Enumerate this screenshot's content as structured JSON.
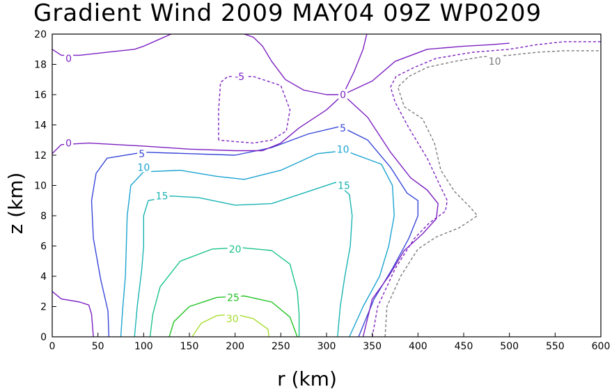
{
  "chart_data": {
    "type": "contour",
    "title": "Gradient Wind 2009 MAY04 09Z   WP0209",
    "xlabel": "r (km)",
    "ylabel": "z (km)",
    "xlim": [
      0,
      600
    ],
    "ylim": [
      0,
      20
    ],
    "x_ticks": [
      "0",
      "50",
      "100",
      "150",
      "200",
      "250",
      "300",
      "350",
      "400",
      "450",
      "500",
      "550",
      "600"
    ],
    "y_ticks": [
      "0",
      "2",
      "4",
      "6",
      "8",
      "10",
      "12",
      "14",
      "16",
      "18",
      "20"
    ],
    "grid": false,
    "legend": "none",
    "contours": [
      {
        "level": "30",
        "color": "#a6dc2c",
        "dashed": false,
        "label_at": [
          197,
          1.2
        ],
        "paths": [
          [
            [
              153,
              0
            ],
            [
              163,
              0.9
            ],
            [
              180,
              1.4
            ],
            [
              200,
              1.5
            ],
            [
              220,
              1.2
            ],
            [
              236,
              0.5
            ],
            [
              237,
              0
            ]
          ]
        ]
      },
      {
        "level": "25",
        "color": "#1fc21f",
        "dashed": false,
        "label_at": [
          198,
          2.6
        ],
        "paths": [
          [
            [
              128,
              0
            ],
            [
              133,
              1.0
            ],
            [
              150,
              2.0
            ],
            [
              180,
              2.6
            ],
            [
              210,
              2.7
            ],
            [
              240,
              2.3
            ],
            [
              260,
              1.3
            ],
            [
              268,
              0
            ]
          ]
        ]
      },
      {
        "level": "20",
        "color": "#19c28c",
        "dashed": false,
        "label_at": [
          200,
          5.8
        ],
        "paths": [
          [
            [
              107,
              0
            ],
            [
              110,
              1.5
            ],
            [
              118,
              3.3
            ],
            [
              140,
              5.0
            ],
            [
              175,
              5.8
            ],
            [
              205,
              5.9
            ],
            [
              240,
              5.7
            ],
            [
              260,
              4.8
            ],
            [
              268,
              3.0
            ],
            [
              270,
              1.5
            ],
            [
              270,
              0
            ]
          ]
        ]
      },
      {
        "level": "15",
        "color": "#19b3b3",
        "dashed": false,
        "label_at": [
          120,
          9.3
        ],
        "label2_at": [
          319,
          10.0
        ],
        "paths": [
          [
            [
              90,
              0
            ],
            [
              93,
              2.0
            ],
            [
              98,
              4.5
            ],
            [
              100,
              6.0
            ],
            [
              100,
              8.0
            ],
            [
              105,
              9.0
            ],
            [
              130,
              9.3
            ],
            [
              160,
              9.2
            ],
            [
              200,
              8.7
            ],
            [
              240,
              8.8
            ],
            [
              280,
              9.6
            ],
            [
              310,
              10.2
            ],
            [
              325,
              9.4
            ],
            [
              328,
              8.0
            ],
            [
              326,
              6.0
            ],
            [
              320,
              4.0
            ],
            [
              315,
              2.0
            ],
            [
              312,
              0
            ]
          ]
        ]
      },
      {
        "level": "10",
        "color": "#1aa3d1",
        "dashed": false,
        "label_at": [
          100,
          11.2
        ],
        "label2_at": [
          318,
          12.4
        ],
        "paths": [
          [
            [
              75,
              0
            ],
            [
              77,
              1.8
            ],
            [
              80,
              4.0
            ],
            [
              81,
              6.0
            ],
            [
              82,
              8.0
            ],
            [
              86,
              10.0
            ],
            [
              100,
              10.9
            ],
            [
              140,
              11.0
            ],
            [
              180,
              10.6
            ],
            [
              210,
              10.4
            ],
            [
              250,
              11.0
            ],
            [
              290,
              12.1
            ],
            [
              320,
              12.3
            ],
            [
              360,
              11.4
            ],
            [
              372,
              10.0
            ],
            [
              374,
              8.0
            ],
            [
              368,
              6.0
            ],
            [
              358,
              4.0
            ],
            [
              340,
              2.0
            ],
            [
              325,
              0
            ]
          ]
        ]
      },
      {
        "level": "5",
        "color": "#3545d8",
        "dashed": false,
        "label_at": [
          98,
          12.1
        ],
        "label2_at": [
          318,
          13.8
        ],
        "paths": [
          [
            [
              62,
              0
            ],
            [
              61,
              1.7
            ],
            [
              53,
              3.8
            ],
            [
              45,
              6.5
            ],
            [
              43,
              9.0
            ],
            [
              48,
              10.8
            ],
            [
              60,
              11.8
            ],
            [
              100,
              12.2
            ],
            [
              150,
              12.1
            ],
            [
              200,
              12.0
            ],
            [
              240,
              12.5
            ],
            [
              280,
              13.4
            ],
            [
              315,
              13.9
            ],
            [
              345,
              13.0
            ],
            [
              370,
              11.2
            ],
            [
              388,
              9.5
            ],
            [
              400,
              9.0
            ],
            [
              400,
              8.0
            ],
            [
              390,
              6.5
            ],
            [
              372,
              4.5
            ],
            [
              352,
              2.5
            ],
            [
              335,
              0
            ]
          ]
        ]
      },
      {
        "level": "0",
        "color": "#7b1fc1",
        "dashed": false,
        "label_at": [
          18,
          18.4
        ],
        "label2_at": [
          18,
          12.8
        ],
        "label3_at": [
          318,
          16.0
        ],
        "paths": [
          [
            [
              0,
              19.0
            ],
            [
              10,
              18.6
            ],
            [
              30,
              18.6
            ],
            [
              60,
              18.8
            ],
            [
              90,
              19.0
            ],
            [
              100,
              19.2
            ],
            [
              115,
              19.6
            ],
            [
              130,
              20.0
            ]
          ],
          [
            [
              0,
              12.1
            ],
            [
              10,
              12.7
            ],
            [
              40,
              12.8
            ],
            [
              100,
              12.6
            ],
            [
              150,
              12.4
            ],
            [
              200,
              12.3
            ],
            [
              230,
              12.3
            ],
            [
              250,
              12.8
            ],
            [
              270,
              13.8
            ],
            [
              300,
              15.0
            ],
            [
              318,
              16.0
            ],
            [
              345,
              14.5
            ],
            [
              370,
              12.2
            ],
            [
              392,
              10.5
            ],
            [
              410,
              9.7
            ],
            [
              422,
              8.8
            ],
            [
              420,
              7.8
            ],
            [
              405,
              6.8
            ],
            [
              385,
              5.7
            ],
            [
              368,
              4.0
            ],
            [
              350,
              2.5
            ],
            [
              340,
              0
            ]
          ],
          [
            [
              0,
              3.0
            ],
            [
              10,
              2.5
            ],
            [
              30,
              2.3
            ],
            [
              40,
              2.1
            ],
            [
              43,
              1.5
            ],
            [
              45,
              0
            ]
          ],
          [
            [
              210,
              20.0
            ],
            [
              220,
              19.8
            ],
            [
              230,
              19.2
            ],
            [
              240,
              18.2
            ],
            [
              255,
              17.0
            ],
            [
              275,
              16.3
            ],
            [
              300,
              16.0
            ],
            [
              318,
              16.0
            ],
            [
              330,
              17.5
            ],
            [
              340,
              19.0
            ],
            [
              344,
              20.0
            ]
          ],
          [
            [
              318,
              16.0
            ],
            [
              350,
              16.9
            ],
            [
              375,
              18.2
            ],
            [
              410,
              19.0
            ],
            [
              450,
              19.2
            ],
            [
              480,
              19.3
            ],
            [
              500,
              19.4
            ]
          ]
        ]
      },
      {
        "level": "-5",
        "color": "#7b1fc1",
        "dashed": true,
        "label_at": [
          205,
          17.2
        ],
        "label2_at": [
          484,
          18.3
        ],
        "paths": [
          [
            [
              182,
              13.0
            ],
            [
              182,
              15.0
            ],
            [
              184,
              16.8
            ],
            [
              192,
              17.2
            ],
            [
              220,
              17.2
            ],
            [
              250,
              16.6
            ],
            [
              260,
              15.0
            ],
            [
              256,
              13.6
            ],
            [
              240,
              13.0
            ],
            [
              220,
              12.8
            ],
            [
              200,
              12.9
            ],
            [
              182,
              13.0
            ]
          ],
          [
            [
              350,
              0
            ],
            [
              356,
              2.0
            ],
            [
              375,
              4.5
            ],
            [
              396,
              6.5
            ],
            [
              412,
              7.5
            ],
            [
              430,
              8.3
            ],
            [
              432,
              9.0
            ],
            [
              424,
              10.0
            ],
            [
              410,
              11.8
            ],
            [
              390,
              13.8
            ],
            [
              375,
              15.5
            ],
            [
              370,
              16.5
            ],
            [
              376,
              17.2
            ],
            [
              396,
              17.8
            ],
            [
              420,
              18.4
            ],
            [
              460,
              18.8
            ],
            [
              500,
              19.0
            ],
            [
              530,
              19.3
            ],
            [
              560,
              19.5
            ],
            [
              600,
              19.5
            ]
          ]
        ]
      },
      {
        "level": "10",
        "color": "#7a7a7a",
        "dashed": true,
        "label_at": [
          484,
          18.2
        ],
        "paths": [
          [
            [
              364,
              0
            ],
            [
              366,
              2.0
            ],
            [
              381,
              4.0
            ],
            [
              400,
              5.8
            ],
            [
              420,
              6.6
            ],
            [
              445,
              7.2
            ],
            [
              465,
              8.0
            ],
            [
              458,
              8.5
            ],
            [
              440,
              9.6
            ],
            [
              425,
              11.0
            ],
            [
              418,
              12.8
            ],
            [
              405,
              14.4
            ],
            [
              385,
              15.2
            ],
            [
              378,
              16.5
            ],
            [
              390,
              17.2
            ],
            [
              410,
              17.8
            ],
            [
              440,
              18.2
            ],
            [
              470,
              18.5
            ],
            [
              500,
              18.6
            ],
            [
              530,
              18.8
            ],
            [
              560,
              18.9
            ],
            [
              600,
              18.9
            ]
          ]
        ]
      }
    ]
  }
}
